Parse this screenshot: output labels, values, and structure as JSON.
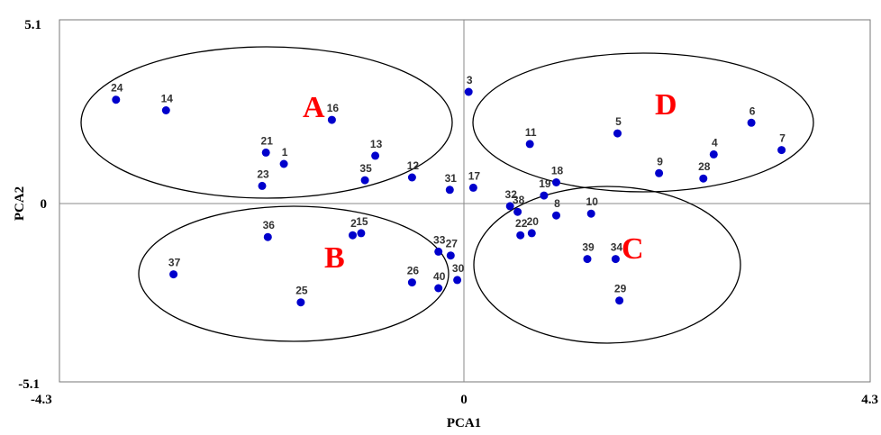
{
  "chart_data": {
    "type": "scatter",
    "title": "",
    "xlabel": "PCA1",
    "ylabel": "PCA2",
    "xlim": [
      -4.3,
      4.3
    ],
    "ylim": [
      -5.1,
      5.1
    ],
    "x_tick_labels": [
      "-4.3",
      "0",
      "4.3"
    ],
    "y_tick_labels": [
      "5.1",
      "0",
      "-5.1"
    ],
    "grid": false,
    "point_color": "#0000cc",
    "points": [
      {
        "label": "24",
        "x": -3.7,
        "y": 2.85
      },
      {
        "label": "14",
        "x": -3.17,
        "y": 2.55
      },
      {
        "label": "16",
        "x": -1.41,
        "y": 2.28
      },
      {
        "label": "3",
        "x": 0.04,
        "y": 3.07
      },
      {
        "label": "11",
        "x": 0.69,
        "y": 1.6
      },
      {
        "label": "5",
        "x": 1.62,
        "y": 1.9
      },
      {
        "label": "6",
        "x": 3.04,
        "y": 2.2
      },
      {
        "label": "7",
        "x": 3.36,
        "y": 1.43
      },
      {
        "label": "4",
        "x": 2.64,
        "y": 1.31
      },
      {
        "label": "9",
        "x": 2.06,
        "y": 0.78
      },
      {
        "label": "28",
        "x": 2.53,
        "y": 0.63
      },
      {
        "label": "21",
        "x": -2.11,
        "y": 1.36
      },
      {
        "label": "1",
        "x": -1.92,
        "y": 1.04
      },
      {
        "label": "13",
        "x": -0.95,
        "y": 1.27
      },
      {
        "label": "23",
        "x": -2.15,
        "y": 0.42
      },
      {
        "label": "35",
        "x": -1.06,
        "y": 0.58
      },
      {
        "label": "12",
        "x": -0.56,
        "y": 0.66
      },
      {
        "label": "31",
        "x": -0.16,
        "y": 0.31
      },
      {
        "label": "17",
        "x": 0.09,
        "y": 0.37
      },
      {
        "label": "18",
        "x": 0.97,
        "y": 0.52
      },
      {
        "label": "19",
        "x": 0.84,
        "y": 0.15
      },
      {
        "label": "32",
        "x": 0.48,
        "y": -0.15
      },
      {
        "label": "38",
        "x": 0.56,
        "y": -0.31
      },
      {
        "label": "8",
        "x": 0.97,
        "y": -0.41
      },
      {
        "label": "10",
        "x": 1.34,
        "y": -0.36
      },
      {
        "label": "20",
        "x": 0.71,
        "y": -0.91
      },
      {
        "label": "22",
        "x": 0.59,
        "y": -0.97
      },
      {
        "label": "36",
        "x": -2.09,
        "y": -1.02
      },
      {
        "label": "2",
        "x": -1.19,
        "y": -0.97
      },
      {
        "label": "15",
        "x": -1.1,
        "y": -0.91
      },
      {
        "label": "33",
        "x": -0.28,
        "y": -1.43
      },
      {
        "label": "27",
        "x": -0.15,
        "y": -1.54
      },
      {
        "label": "39",
        "x": 1.3,
        "y": -1.64
      },
      {
        "label": "34",
        "x": 1.6,
        "y": -1.64
      },
      {
        "label": "37",
        "x": -3.09,
        "y": -2.07
      },
      {
        "label": "26",
        "x": -0.56,
        "y": -2.3
      },
      {
        "label": "40",
        "x": -0.28,
        "y": -2.46
      },
      {
        "label": "30",
        "x": -0.08,
        "y": -2.23
      },
      {
        "label": "25",
        "x": -1.74,
        "y": -2.86
      },
      {
        "label": "29",
        "x": 1.64,
        "y": -2.81
      }
    ],
    "groups": [
      {
        "label": "A"
      },
      {
        "label": "B"
      },
      {
        "label": "C"
      },
      {
        "label": "D"
      }
    ]
  }
}
